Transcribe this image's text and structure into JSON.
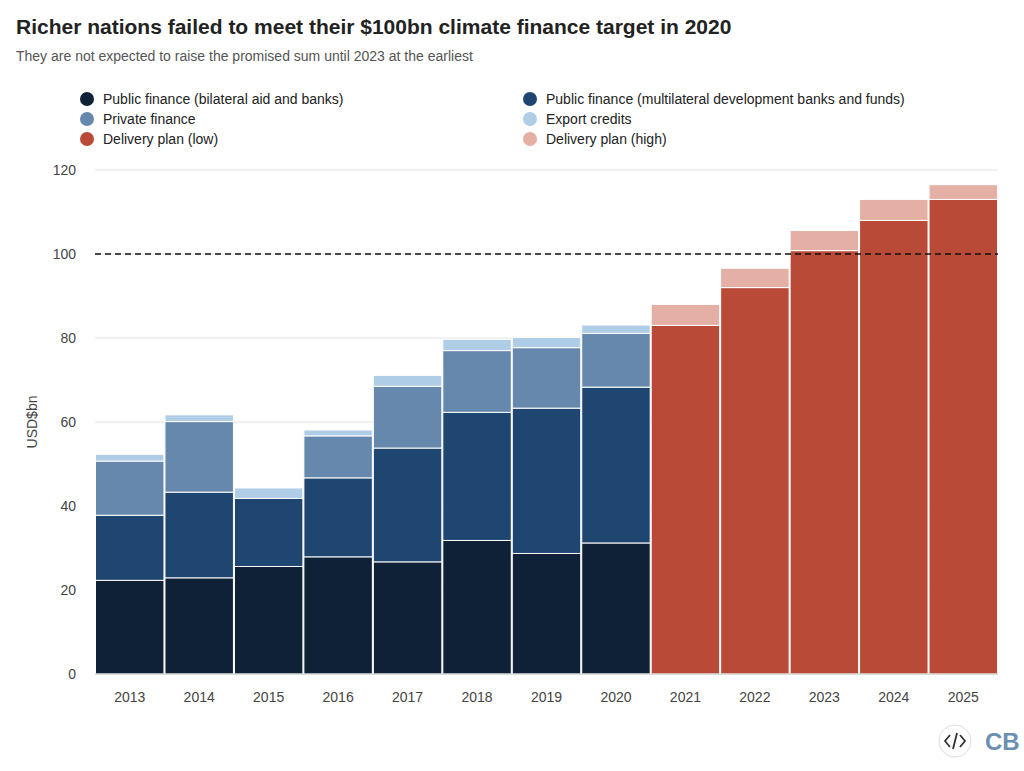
{
  "chart_data": {
    "type": "bar",
    "stacked": true,
    "title": "Richer nations failed to meet their $100bn climate finance target in 2020",
    "subtitle": "They are not expected to raise the promised sum until 2023 at the earliest",
    "y_label": "USD$bn",
    "logo": "CB",
    "categories": [
      "2013",
      "2014",
      "2015",
      "2016",
      "2017",
      "2018",
      "2019",
      "2020",
      "2021",
      "2022",
      "2023",
      "2024",
      "2025"
    ],
    "series": [
      {
        "name": "Public finance (bilateral aid and banks)",
        "color": "#0e2136",
        "values": [
          22.3,
          22.9,
          25.6,
          27.9,
          26.7,
          31.8,
          28.7,
          31.2,
          null,
          null,
          null,
          null,
          null
        ]
      },
      {
        "name": "Public finance (multilateral development banks and funds)",
        "color": "#1f4571",
        "values": [
          15.5,
          20.4,
          16.2,
          18.8,
          27.1,
          30.5,
          34.6,
          37.1,
          null,
          null,
          null,
          null,
          null
        ]
      },
      {
        "name": "Private finance",
        "color": "#6688ac",
        "values": [
          12.9,
          16.8,
          null,
          10.0,
          14.7,
          14.7,
          14.4,
          12.8,
          null,
          null,
          null,
          null,
          null
        ]
      },
      {
        "name": "Export credits",
        "color": "#afcde6",
        "values": [
          1.6,
          1.6,
          2.5,
          1.4,
          2.6,
          2.7,
          2.4,
          2.0,
          null,
          null,
          null,
          null,
          null
        ]
      },
      {
        "name": "Delivery plan (low)",
        "color": "#b84a37",
        "values": [
          null,
          null,
          null,
          null,
          null,
          null,
          null,
          null,
          83.0,
          92.0,
          100.8,
          108.0,
          113.0
        ]
      },
      {
        "name": "Delivery plan (high)",
        "color": "#e4afa4",
        "values": [
          null,
          null,
          null,
          null,
          null,
          null,
          null,
          null,
          5.0,
          4.6,
          4.8,
          5.0,
          3.5
        ]
      }
    ],
    "ylim": [
      0,
      120
    ],
    "yticks": [
      0,
      20,
      40,
      60,
      80,
      100,
      120
    ],
    "grid": true,
    "legend": "top",
    "reference_lines": [
      {
        "y": 100,
        "line_style": "dashed"
      }
    ]
  }
}
